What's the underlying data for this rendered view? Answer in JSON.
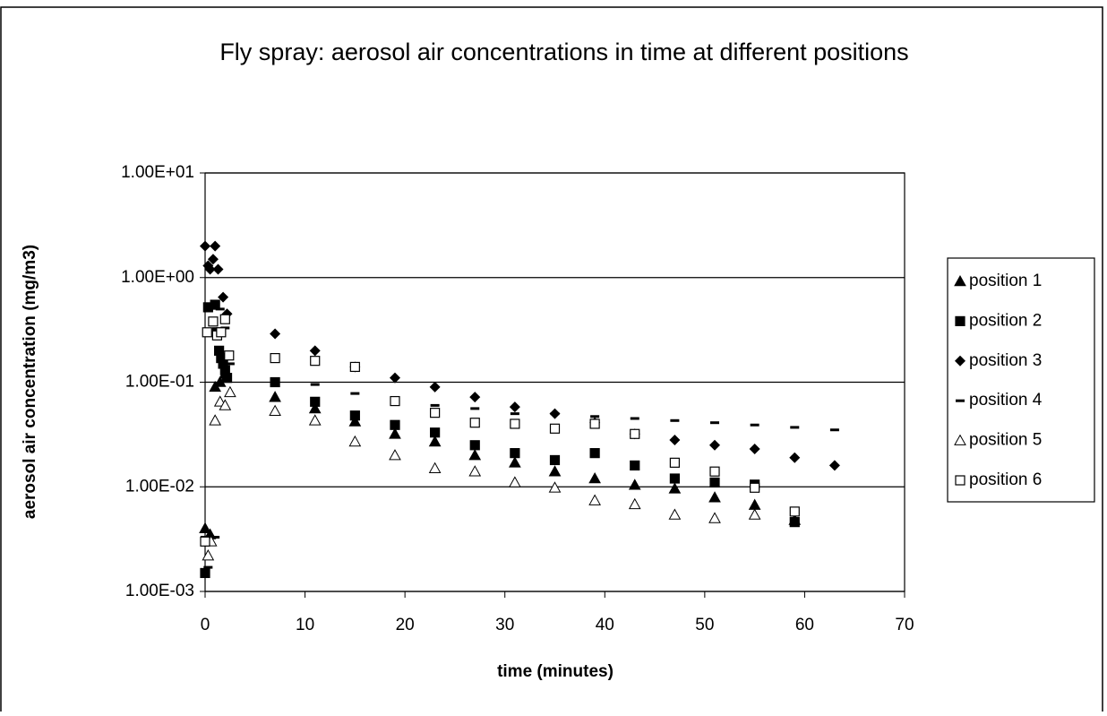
{
  "chart_data": {
    "type": "scatter",
    "title": "Fly spray: aerosol air concentrations in time at different positions",
    "x_label": "time (minutes)",
    "y_label": "aerosol air concentration (mg/m3)",
    "xlim": [
      0,
      70
    ],
    "xticks": [
      0,
      10,
      20,
      30,
      40,
      50,
      60,
      70
    ],
    "ylim": [
      0.001,
      10
    ],
    "ylog": true,
    "yticks": [
      {
        "value": 0.001,
        "label": "1.00E-03"
      },
      {
        "value": 0.01,
        "label": "1.00E-02"
      },
      {
        "value": 0.1,
        "label": "1.00E-01"
      },
      {
        "value": 1,
        "label": "1.00E+00"
      },
      {
        "value": 10,
        "label": "1.00E+01"
      }
    ],
    "grid": true,
    "legend": "right",
    "series": [
      {
        "name": "position 1",
        "marker": "triangle",
        "color": "#000000",
        "x": [
          0,
          0.5,
          1,
          1.5,
          2,
          7,
          11,
          15,
          19,
          23,
          27,
          31,
          35,
          39,
          43,
          47,
          51,
          55,
          59
        ],
        "values": [
          0.004,
          0.0035,
          0.09,
          0.1,
          0.12,
          0.072,
          0.056,
          0.042,
          0.032,
          0.027,
          0.02,
          0.017,
          0.014,
          0.012,
          0.0104,
          0.0096,
          0.0079,
          0.0067,
          0.0048
        ]
      },
      {
        "name": "position 2",
        "marker": "square",
        "color": "#000000",
        "x": [
          0,
          0.3,
          1,
          1.2,
          1.4,
          1.6,
          1.8,
          2,
          2.2,
          7,
          11,
          15,
          19,
          23,
          27,
          31,
          35,
          39,
          43,
          47,
          51,
          55,
          59
        ],
        "values": [
          0.0015,
          0.52,
          0.55,
          0.3,
          0.2,
          0.17,
          0.15,
          0.13,
          0.11,
          0.1,
          0.065,
          0.048,
          0.039,
          0.033,
          0.025,
          0.021,
          0.018,
          0.021,
          0.016,
          0.012,
          0.011,
          0.0105,
          0.0046
        ]
      },
      {
        "name": "position 3",
        "marker": "diamond",
        "color": "#000000",
        "x": [
          0,
          0.3,
          0.5,
          0.8,
          1,
          1.3,
          1.8,
          2.2,
          7,
          11,
          15,
          19,
          23,
          27,
          31,
          35,
          39,
          43,
          47,
          51,
          55,
          59,
          63
        ],
        "values": [
          2.0,
          1.3,
          1.2,
          1.5,
          2.0,
          1.2,
          0.65,
          0.45,
          0.29,
          0.2,
          0.14,
          0.11,
          0.09,
          0.072,
          0.058,
          0.05,
          0.041,
          0.032,
          0.028,
          0.025,
          0.023,
          0.019,
          0.016
        ]
      },
      {
        "name": "position 4",
        "marker": "dash",
        "color": "#000000",
        "x": [
          0,
          0.3,
          1,
          1.5,
          2,
          2.5,
          11,
          15,
          19,
          23,
          27,
          31,
          35,
          39,
          43,
          47,
          51,
          55,
          59,
          63
        ],
        "values": [
          0.0033,
          0.0017,
          0.0033,
          0.5,
          0.33,
          0.15,
          0.095,
          0.078,
          0.068,
          0.06,
          0.056,
          0.05,
          0.05,
          0.047,
          0.045,
          0.043,
          0.041,
          0.039,
          0.037,
          0.035
        ]
      },
      {
        "name": "position 5",
        "marker": "triangle-open",
        "color": "#000000",
        "x": [
          0.3,
          0.6,
          1,
          1.5,
          2,
          2.5,
          7,
          11,
          15,
          19,
          23,
          27,
          31,
          35,
          39,
          43,
          47,
          51,
          55
        ],
        "values": [
          0.0022,
          0.003,
          0.043,
          0.065,
          0.06,
          0.08,
          0.053,
          0.043,
          0.027,
          0.02,
          0.015,
          0.014,
          0.011,
          0.0098,
          0.0074,
          0.0068,
          0.0054,
          0.005,
          0.0054
        ]
      },
      {
        "name": "position 6",
        "marker": "square-open",
        "color": "#000000",
        "x": [
          0,
          0.2,
          0.8,
          1.2,
          1.6,
          2,
          2.4,
          7,
          11,
          15,
          19,
          23,
          27,
          31,
          35,
          39,
          43,
          47,
          51,
          55,
          59
        ],
        "values": [
          0.003,
          0.3,
          0.38,
          0.28,
          0.3,
          0.4,
          0.18,
          0.17,
          0.16,
          0.14,
          0.066,
          0.051,
          0.041,
          0.04,
          0.036,
          0.04,
          0.032,
          0.017,
          0.014,
          0.0098,
          0.0058
        ]
      }
    ]
  }
}
